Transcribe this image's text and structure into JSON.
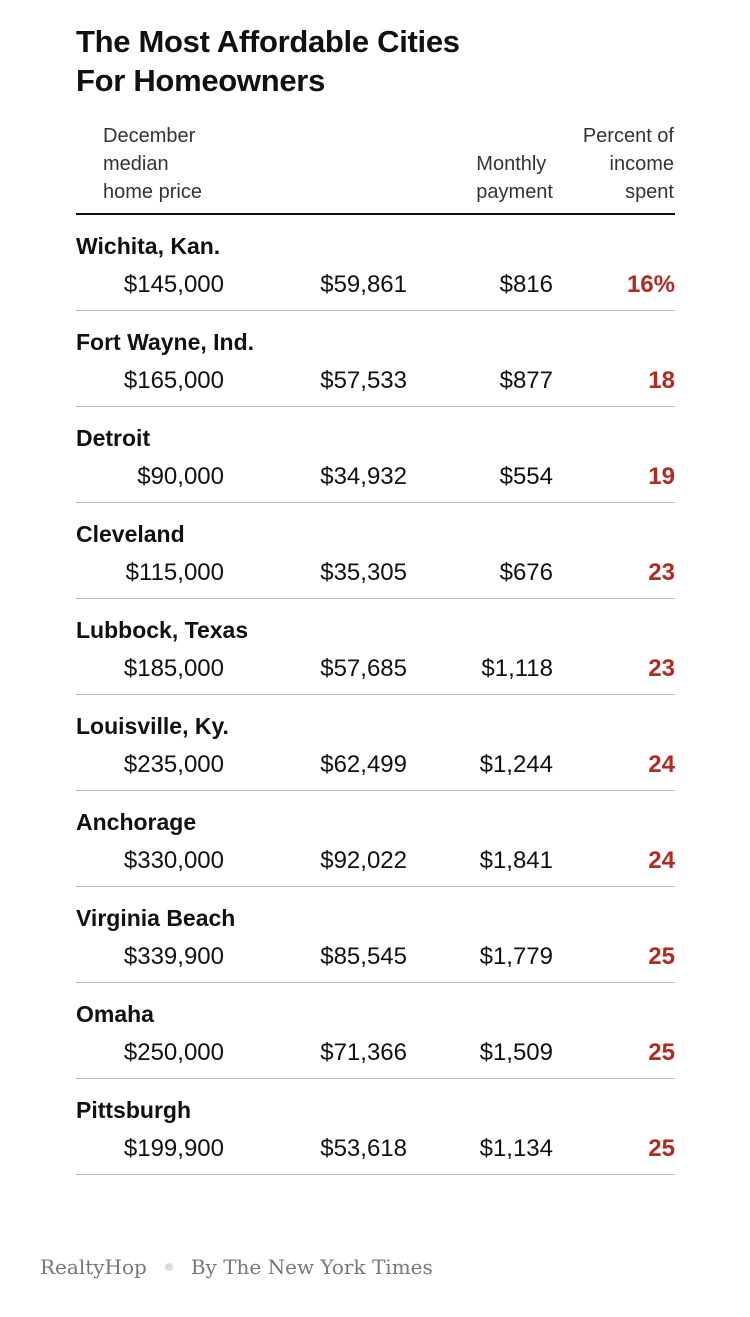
{
  "chart_data": {
    "type": "table",
    "title_line1": "The Most Affordable Cities",
    "title_line2": "For Homeowners",
    "headers": {
      "price": [
        "December",
        "median",
        "home price"
      ],
      "payment": [
        "Monthly",
        "payment"
      ],
      "percent": [
        "Percent of",
        "income",
        "spent"
      ]
    },
    "rows": [
      {
        "city": "Wichita, Kan.",
        "price": "$145,000",
        "income": "$59,861",
        "payment": "$816",
        "percent": "16%"
      },
      {
        "city": "Fort Wayne, Ind.",
        "price": "$165,000",
        "income": "$57,533",
        "payment": "$877",
        "percent": "18"
      },
      {
        "city": "Detroit",
        "price": "$90,000",
        "income": "$34,932",
        "payment": "$554",
        "percent": "19"
      },
      {
        "city": "Cleveland",
        "price": "$115,000",
        "income": "$35,305",
        "payment": "$676",
        "percent": "23"
      },
      {
        "city": "Lubbock, Texas",
        "price": "$185,000",
        "income": "$57,685",
        "payment": "$1,118",
        "percent": "23"
      },
      {
        "city": "Louisville, Ky.",
        "price": "$235,000",
        "income": "$62,499",
        "payment": "$1,244",
        "percent": "24"
      },
      {
        "city": "Anchorage",
        "price": "$330,000",
        "income": "$92,022",
        "payment": "$1,841",
        "percent": "24"
      },
      {
        "city": "Virginia Beach",
        "price": "$339,900",
        "income": "$85,545",
        "payment": "$1,779",
        "percent": "25"
      },
      {
        "city": "Omaha",
        "price": "$250,000",
        "income": "$71,366",
        "payment": "$1,509",
        "percent": "25"
      },
      {
        "city": "Pittsburgh",
        "price": "$199,900",
        "income": "$53,618",
        "payment": "$1,134",
        "percent": "25"
      }
    ],
    "accent_color": "#b52a20"
  },
  "footer": {
    "source": "RealtyHop",
    "credit": "By The New York Times"
  }
}
